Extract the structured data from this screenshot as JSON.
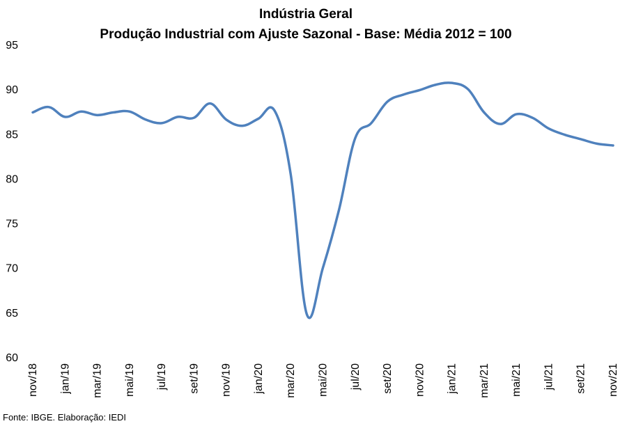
{
  "chart_data": {
    "type": "line",
    "title": "Indústria Geral",
    "subtitle": "Produção Industrial com Ajuste Sazonal - Base: Média 2012 = 100",
    "ylim": [
      60,
      95
    ],
    "yticks": [
      60,
      65,
      70,
      75,
      80,
      85,
      90,
      95
    ],
    "grid": false,
    "line_color": "#4f81bd",
    "x": [
      "nov/18",
      "dez/18",
      "jan/19",
      "fev/19",
      "mar/19",
      "abr/19",
      "mai/19",
      "jun/19",
      "jul/19",
      "ago/19",
      "set/19",
      "out/19",
      "nov/19",
      "dez/19",
      "jan/20",
      "fev/20",
      "mar/20",
      "abr/20",
      "mai/20",
      "jun/20",
      "jul/20",
      "ago/20",
      "set/20",
      "out/20",
      "nov/20",
      "dez/20",
      "jan/21",
      "fev/21",
      "mar/21",
      "abr/21",
      "mai/21",
      "jun/21",
      "jul/21",
      "ago/21",
      "set/21",
      "out/21",
      "nov/21"
    ],
    "tick_labels": [
      "nov/18",
      "jan/19",
      "mar/19",
      "mai/19",
      "jul/19",
      "set/19",
      "nov/19",
      "jan/20",
      "mar/20",
      "mai/20",
      "jul/20",
      "set/20",
      "nov/20",
      "jan/21",
      "mar/21",
      "mai/21",
      "jul/21",
      "set/21",
      "nov/21"
    ],
    "series": [
      {
        "values": [
          87.4,
          88.0,
          86.9,
          87.5,
          87.1,
          87.4,
          87.5,
          86.6,
          86.2,
          86.9,
          86.8,
          88.4,
          86.6,
          85.9,
          86.7,
          87.6,
          80.5,
          64.8,
          70.0,
          76.5,
          84.5,
          86.2,
          88.6,
          89.4,
          89.9,
          90.5,
          90.7,
          90.0,
          87.4,
          86.1,
          87.2,
          86.8,
          85.6,
          84.9,
          84.4,
          83.9,
          83.7
        ]
      }
    ]
  },
  "footer": {
    "source": "Fonte: IBGE. Elaboração: IEDI"
  }
}
